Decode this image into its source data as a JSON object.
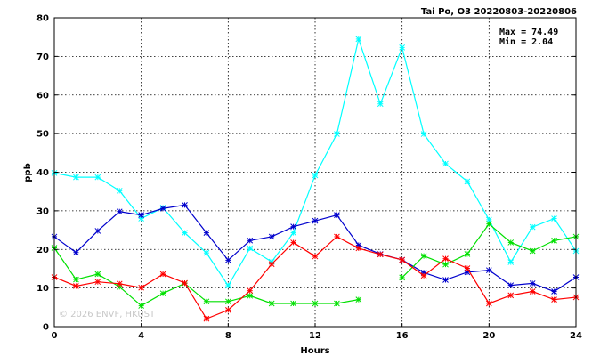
{
  "chart_data": {
    "type": "line",
    "title": "Tai Po, O3 20220803-20220806",
    "xlabel": "Hours",
    "ylabel": "ppb",
    "xlim": [
      0,
      24
    ],
    "ylim": [
      0,
      80
    ],
    "xticks": [
      0,
      4,
      8,
      12,
      16,
      20,
      24
    ],
    "yticks": [
      0,
      10,
      20,
      30,
      40,
      50,
      60,
      70,
      80
    ],
    "grid": true,
    "stats": {
      "max": "Max = 74.49",
      "min": "Min =  2.04"
    },
    "watermark": "© 2026  ENVF, HKUST",
    "x": [
      0,
      1,
      2,
      3,
      4,
      5,
      6,
      7,
      8,
      9,
      10,
      11,
      12,
      13,
      14,
      15,
      16,
      17,
      18,
      19,
      20,
      21,
      22,
      23,
      24
    ],
    "series": [
      {
        "color": "#00ffff",
        "values": [
          39.8,
          38.7,
          38.7,
          35.2,
          28.0,
          30.8,
          24.3,
          19.1,
          10.6,
          20.3,
          16.8,
          24.3,
          39.2,
          49.9,
          74.49,
          57.7,
          72.3,
          49.9,
          42.2,
          37.6,
          27.7,
          16.7,
          25.8,
          28.0,
          19.6
        ]
      },
      {
        "color": "#0000cd",
        "values": [
          23.3,
          19.2,
          24.8,
          29.8,
          28.9,
          30.6,
          31.5,
          24.3,
          17.2,
          22.3,
          23.3,
          25.9,
          27.4,
          28.9,
          21.1,
          18.8,
          17.3,
          14.0,
          12.1,
          14.1,
          14.6,
          10.7,
          11.2,
          9.1,
          12.8
        ]
      },
      {
        "color": "#00e000",
        "values": [
          20.4,
          12.2,
          13.6,
          10.3,
          5.4,
          8.6,
          11.2,
          6.5,
          6.5,
          8.0,
          6.0,
          6.0,
          6.0,
          6.0,
          7.0,
          null,
          12.7,
          18.3,
          16.1,
          18.8,
          26.6,
          21.8,
          19.6,
          22.3,
          23.3
        ]
      },
      {
        "color": "#ff0000",
        "values": [
          12.8,
          10.5,
          11.6,
          11.1,
          10.1,
          13.6,
          11.3,
          2.04,
          4.3,
          9.3,
          16.2,
          21.8,
          18.2,
          23.3,
          20.3,
          18.7,
          17.3,
          13.2,
          17.6,
          15.1,
          6.0,
          8.1,
          9.1,
          7.0,
          7.6
        ]
      }
    ]
  }
}
